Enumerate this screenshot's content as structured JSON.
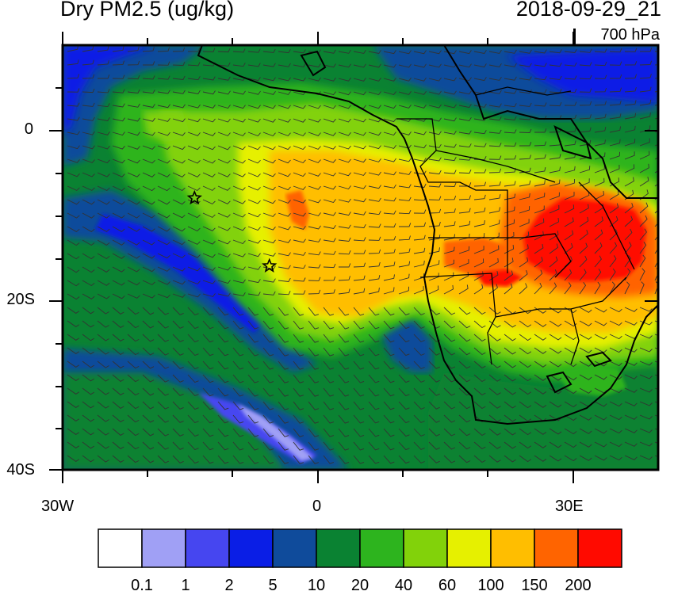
{
  "map": {
    "title": "Dry PM2.5 (ug/kg)",
    "timestamp": "2018-09-29_21",
    "level": "700 hPa",
    "lat_labels": [
      "0",
      "20S",
      "40S"
    ],
    "lon_labels": [
      "30W",
      "0",
      "30E"
    ],
    "extent": {
      "lon": [
        -30,
        40
      ],
      "lat": [
        -40,
        10
      ]
    },
    "markers": [
      {
        "name": "star",
        "lon": -14.5,
        "lat": -8
      },
      {
        "name": "star",
        "lon": -5.7,
        "lat": -16
      }
    ]
  },
  "colorbar": {
    "labels": [
      "0.1",
      "1",
      "2",
      "5",
      "10",
      "20",
      "40",
      "60",
      "100",
      "150",
      "200"
    ],
    "colors": [
      "#ffffff",
      "#a0a0f5",
      "#4646f0",
      "#0a1ee6",
      "#0f4b9b",
      "#0a8232",
      "#2db41e",
      "#82d20a",
      "#e6f000",
      "#ffbe00",
      "#ff6400",
      "#ff0a00"
    ]
  }
}
